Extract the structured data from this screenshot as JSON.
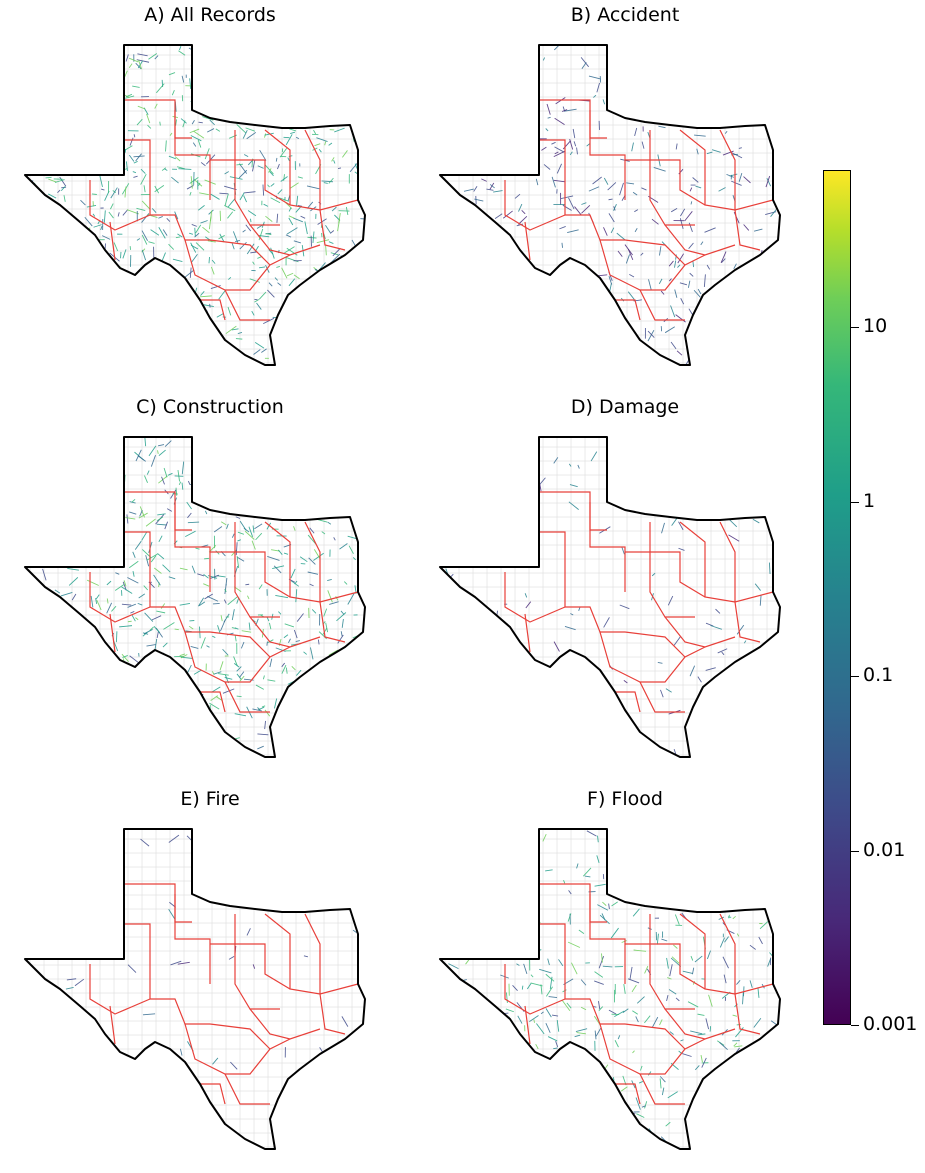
{
  "panels": [
    {
      "id": "A",
      "title": "A) All Records",
      "density": 1.0,
      "palette": "mixed-green"
    },
    {
      "id": "B",
      "title": "B) Accident",
      "density": 0.45,
      "palette": "blue"
    },
    {
      "id": "C",
      "title": "C) Construction",
      "density": 0.85,
      "palette": "mixed-green"
    },
    {
      "id": "D",
      "title": "D) Damage",
      "density": 0.12,
      "palette": "blue"
    },
    {
      "id": "E",
      "title": "E) Fire",
      "density": 0.08,
      "palette": "blue"
    },
    {
      "id": "F",
      "title": "F) Flood",
      "density": 0.6,
      "palette": "mixed"
    }
  ],
  "colorbar": {
    "scale": "log",
    "range": [
      0.001,
      80
    ],
    "colormap": "viridis",
    "ticks": [
      {
        "value": 10,
        "label": "10"
      },
      {
        "value": 1,
        "label": "1"
      },
      {
        "value": 0.1,
        "label": "0.1"
      },
      {
        "value": 0.01,
        "label": "0.01"
      },
      {
        "value": 0.001,
        "label": "0.001"
      }
    ]
  },
  "colors": {
    "state_outline": "#000000",
    "district_boundary": "#e8403a",
    "county_boundary": "#d6d6d6"
  }
}
